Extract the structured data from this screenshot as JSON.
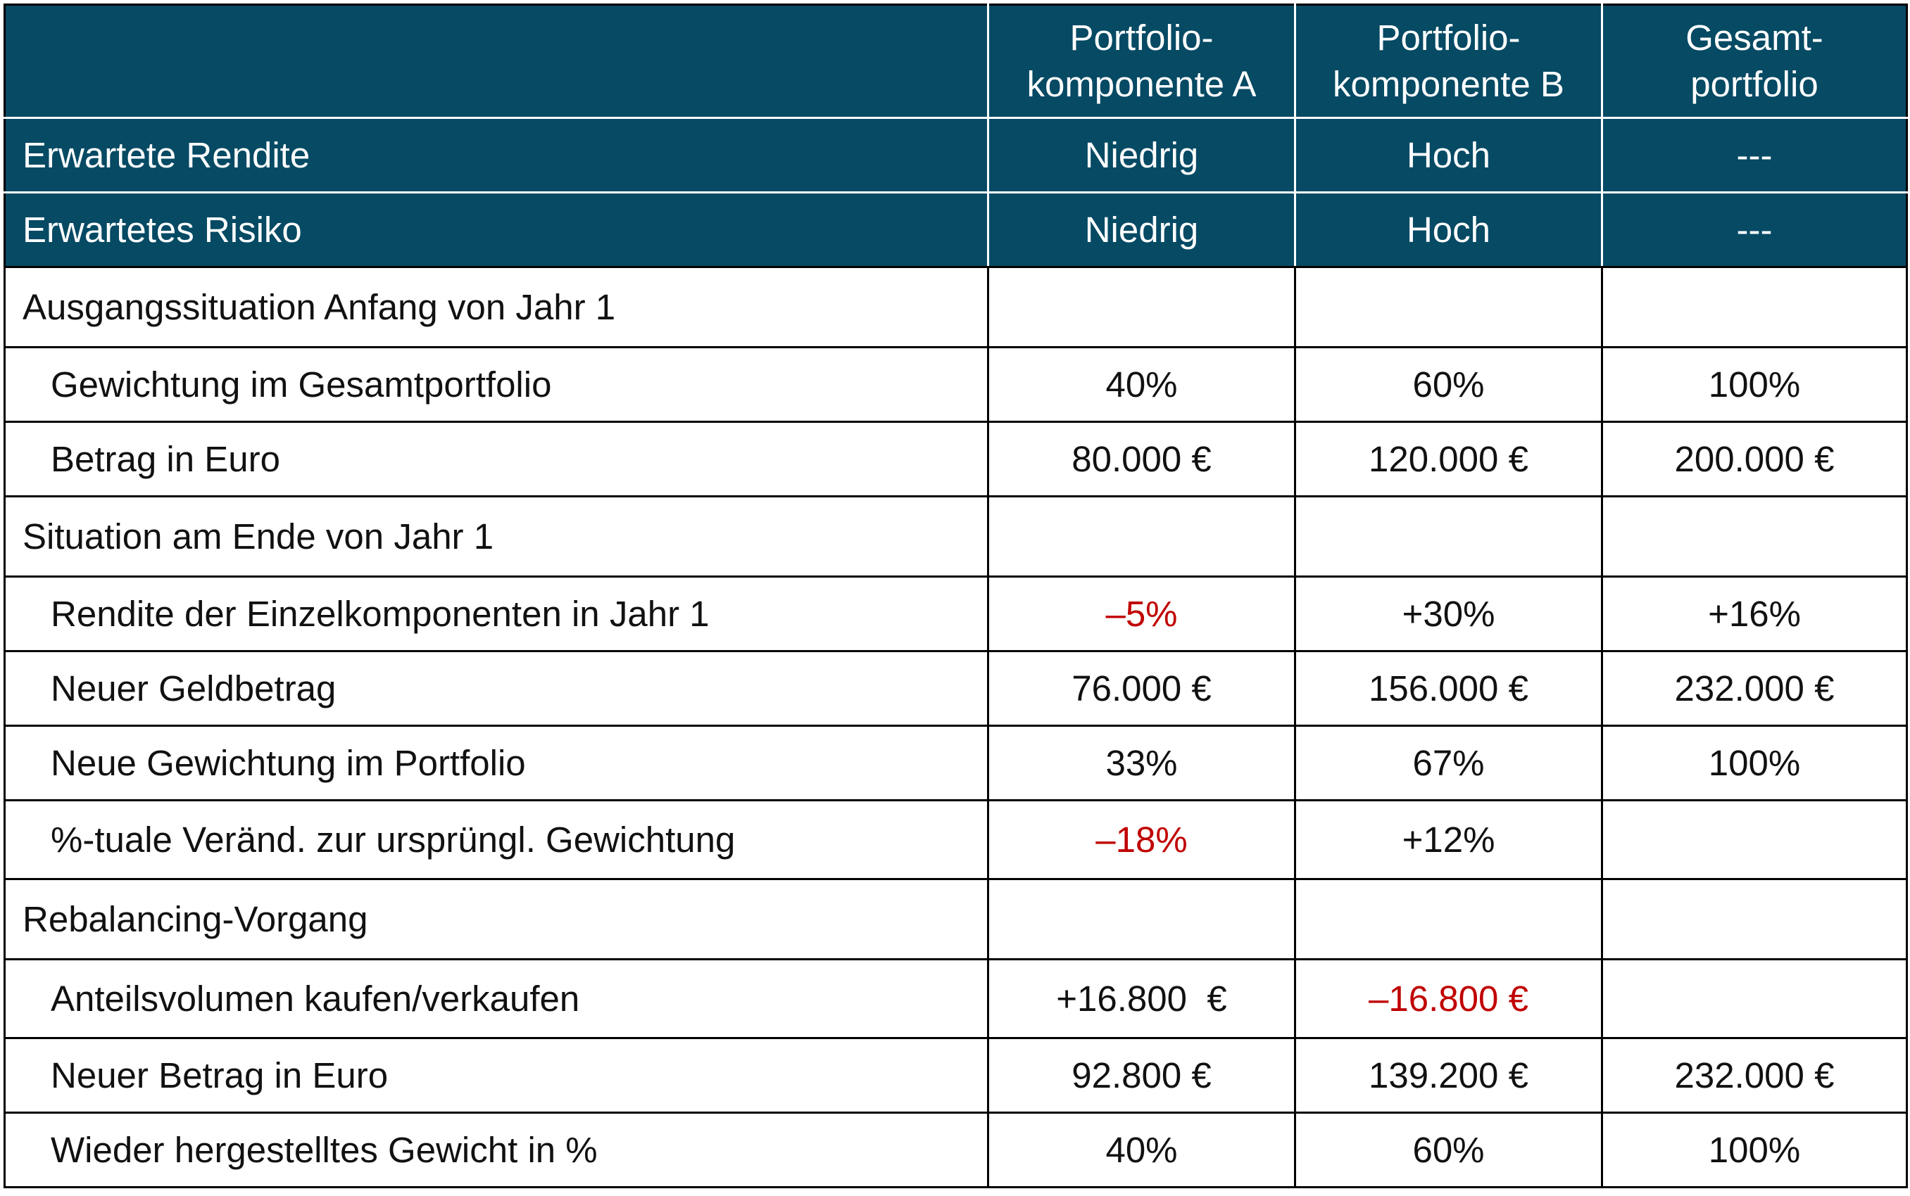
{
  "colors": {
    "header_bg": "#064a64",
    "header_text": "#ffffff",
    "negative": "#c00000",
    "grid": "#000000"
  },
  "header": {
    "col_a_line1": "Portfolio-",
    "col_a_line2": "komponente A",
    "col_b_line1": "Portfolio-",
    "col_b_line2": "komponente B",
    "col_total_line1": "Gesamt-",
    "col_total_line2": "portfolio"
  },
  "expected_return": {
    "label": "Erwartete Rendite",
    "a": "Niedrig",
    "b": "Hoch",
    "total": "---"
  },
  "expected_risk": {
    "label": "Erwartetes Risiko",
    "a": "Niedrig",
    "b": "Hoch",
    "total": "---"
  },
  "start": {
    "title": "Ausgangssituation Anfang von Jahr 1",
    "weight": {
      "label": "Gewichtung im Gesamtportfolio",
      "a": "40%",
      "b": "60%",
      "total": "100%"
    },
    "amount": {
      "label": "Betrag in Euro",
      "a": "80.000 €",
      "b": "120.000 €",
      "total": "200.000 €"
    }
  },
  "end_year1": {
    "title": "Situation am Ende von Jahr 1",
    "return": {
      "label": "Rendite der Einzelkomponenten in Jahr 1",
      "a": "–5%",
      "b": "+30%",
      "total": "+16%"
    },
    "new_amount": {
      "label": "Neuer Geldbetrag",
      "a": "76.000 €",
      "b": "156.000 €",
      "total": "232.000 €"
    },
    "new_weight": {
      "label": "Neue Gewichtung im Portfolio",
      "a": "33%",
      "b": "67%",
      "total": "100%"
    },
    "change": {
      "label": "%-tuale Veränd. zur ursprüngl. Gewichtung",
      "a": "–18%",
      "b": "+12%",
      "total": ""
    }
  },
  "rebalancing": {
    "title": "Rebalancing-Vorgang",
    "trade": {
      "label": "Anteilsvolumen kaufen/verkaufen",
      "a": "+16.800  €",
      "b": "–16.800 €",
      "total": ""
    },
    "new_amount": {
      "label": "Neuer Betrag in Euro",
      "a": "92.800 €",
      "b": "139.200 €",
      "total": "232.000 €"
    },
    "restored_weight": {
      "label": "Wieder hergestelltes Gewicht in %",
      "a": "40%",
      "b": "60%",
      "total": "100%"
    }
  }
}
